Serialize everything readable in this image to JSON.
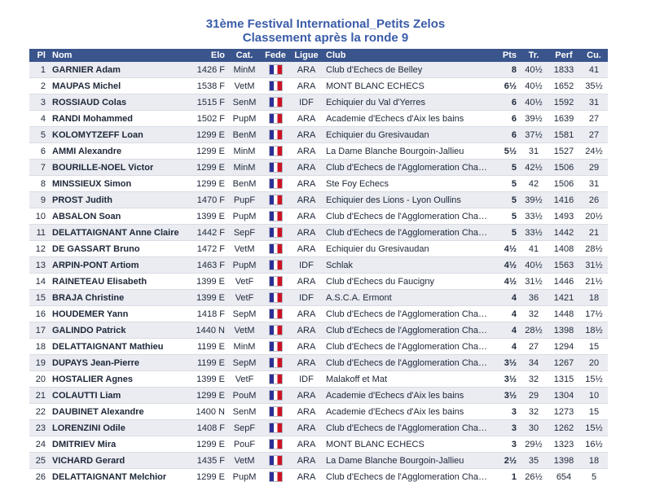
{
  "page": {
    "title": "31ème Festival International_Petits Zelos",
    "subtitle": "Classement après la ronde 9"
  },
  "colors": {
    "title-text": "#3a5ca8",
    "header-bg": "#3a548c",
    "row-alt": "#eaecf2",
    "body-text": "#20293a",
    "flag-blue": "#2b2f96",
    "flag-red": "#cc1425"
  },
  "table": {
    "columns": [
      "Pl",
      "Nom",
      "Elo",
      "Cat.",
      "Fede",
      "Ligue",
      "Club",
      "Pts",
      "Tr.",
      "Perf",
      "Cu."
    ],
    "flag_icon": "france-flag",
    "rows": [
      {
        "pl": "1",
        "nom": "GARNIER Adam",
        "elo": "1426 F",
        "cat": "MinM",
        "ligue": "ARA",
        "club": "Club d'Echecs de Belley",
        "pts": "8",
        "tr": "40½",
        "perf": "1833",
        "cu": "41"
      },
      {
        "pl": "2",
        "nom": "MAUPAS Michel",
        "elo": "1538 F",
        "cat": "VetM",
        "ligue": "ARA",
        "club": "MONT BLANC ECHECS",
        "pts": "6½",
        "tr": "40½",
        "perf": "1652",
        "cu": "35½"
      },
      {
        "pl": "3",
        "nom": "ROSSIAUD Colas",
        "elo": "1515 F",
        "cat": "SenM",
        "ligue": "IDF",
        "club": "Echiquier du Val d'Yerres",
        "pts": "6",
        "tr": "40½",
        "perf": "1592",
        "cu": "31"
      },
      {
        "pl": "4",
        "nom": "RANDI Mohammed",
        "elo": "1502 F",
        "cat": "PupM",
        "ligue": "ARA",
        "club": "Academie d'Echecs d'Aix les bains",
        "pts": "6",
        "tr": "39½",
        "perf": "1639",
        "cu": "27"
      },
      {
        "pl": "5",
        "nom": "KOLOMYTZEFF Loan",
        "elo": "1299 E",
        "cat": "BenM",
        "ligue": "ARA",
        "club": "Echiquier du Gresivaudan",
        "pts": "6",
        "tr": "37½",
        "perf": "1581",
        "cu": "27"
      },
      {
        "pl": "6",
        "nom": "AMMI Alexandre",
        "elo": "1299 E",
        "cat": "MinM",
        "ligue": "ARA",
        "club": "La Dame Blanche Bourgoin-Jallieu",
        "pts": "5½",
        "tr": "31",
        "perf": "1527",
        "cu": "24½"
      },
      {
        "pl": "7",
        "nom": "BOURILLE-NOEL Victor",
        "elo": "1299 E",
        "cat": "MinM",
        "ligue": "ARA",
        "club": "Club d'Echecs de l'Agglomeration Chambe...",
        "pts": "5",
        "tr": "42½",
        "perf": "1506",
        "cu": "29"
      },
      {
        "pl": "8",
        "nom": "MINSSIEUX Simon",
        "elo": "1299 E",
        "cat": "BenM",
        "ligue": "ARA",
        "club": "Ste Foy Echecs",
        "pts": "5",
        "tr": "42",
        "perf": "1506",
        "cu": "31"
      },
      {
        "pl": "9",
        "nom": "PROST Judith",
        "elo": "1470 F",
        "cat": "PupF",
        "ligue": "ARA",
        "club": "Echiquier des Lions - Lyon Oullins",
        "pts": "5",
        "tr": "39½",
        "perf": "1416",
        "cu": "26"
      },
      {
        "pl": "10",
        "nom": "ABSALON Soan",
        "elo": "1399 E",
        "cat": "PupM",
        "ligue": "ARA",
        "club": "Club d'Echecs de l'Agglomeration Chambe...",
        "pts": "5",
        "tr": "33½",
        "perf": "1493",
        "cu": "20½"
      },
      {
        "pl": "11",
        "nom": "DELATTAIGNANT Anne Claire",
        "elo": "1442 F",
        "cat": "SepF",
        "ligue": "ARA",
        "club": "Club d'Echecs de l'Agglomeration Chambe...",
        "pts": "5",
        "tr": "33½",
        "perf": "1442",
        "cu": "21"
      },
      {
        "pl": "12",
        "nom": "DE GASSART Bruno",
        "elo": "1472 F",
        "cat": "VetM",
        "ligue": "ARA",
        "club": "Echiquier du Gresivaudan",
        "pts": "4½",
        "tr": "41",
        "perf": "1408",
        "cu": "28½"
      },
      {
        "pl": "13",
        "nom": "ARPIN-PONT Artiom",
        "elo": "1463 F",
        "cat": "PupM",
        "ligue": "IDF",
        "club": "Schlak",
        "pts": "4½",
        "tr": "40½",
        "perf": "1563",
        "cu": "31½"
      },
      {
        "pl": "14",
        "nom": "RAINETEAU Elisabeth",
        "elo": "1399 E",
        "cat": "VetF",
        "ligue": "ARA",
        "club": "Club d'Echecs du Faucigny",
        "pts": "4½",
        "tr": "31½",
        "perf": "1446",
        "cu": "21½"
      },
      {
        "pl": "15",
        "nom": "BRAJA Christine",
        "elo": "1399 E",
        "cat": "VetF",
        "ligue": "IDF",
        "club": "A.S.C.A. Ermont",
        "pts": "4",
        "tr": "36",
        "perf": "1421",
        "cu": "18"
      },
      {
        "pl": "16",
        "nom": "HOUDEMER Yann",
        "elo": "1418 F",
        "cat": "SepM",
        "ligue": "ARA",
        "club": "Club d'Echecs de l'Agglomeration Chambe...",
        "pts": "4",
        "tr": "32",
        "perf": "1448",
        "cu": "17½"
      },
      {
        "pl": "17",
        "nom": "GALINDO Patrick",
        "elo": "1440 N",
        "cat": "VetM",
        "ligue": "ARA",
        "club": "Club d'Echecs de l'Agglomeration Chambe...",
        "pts": "4",
        "tr": "28½",
        "perf": "1398",
        "cu": "18½"
      },
      {
        "pl": "18",
        "nom": "DELATTAIGNANT Mathieu",
        "elo": "1199 E",
        "cat": "MinM",
        "ligue": "ARA",
        "club": "Club d'Echecs de l'Agglomeration Chambe...",
        "pts": "4",
        "tr": "27",
        "perf": "1294",
        "cu": "15"
      },
      {
        "pl": "19",
        "nom": "DUPAYS Jean-Pierre",
        "elo": "1199 E",
        "cat": "SepM",
        "ligue": "ARA",
        "club": "Club d'Echecs de l'Agglomeration Chambe...",
        "pts": "3½",
        "tr": "34",
        "perf": "1267",
        "cu": "20"
      },
      {
        "pl": "20",
        "nom": "HOSTALIER Agnes",
        "elo": "1399 E",
        "cat": "VetF",
        "ligue": "IDF",
        "club": "Malakoff et Mat",
        "pts": "3½",
        "tr": "32",
        "perf": "1315",
        "cu": "15½"
      },
      {
        "pl": "21",
        "nom": "COLAUTTI Liam",
        "elo": "1299 E",
        "cat": "PouM",
        "ligue": "ARA",
        "club": "Academie d'Echecs d'Aix les bains",
        "pts": "3½",
        "tr": "29",
        "perf": "1304",
        "cu": "10"
      },
      {
        "pl": "22",
        "nom": "DAUBINET Alexandre",
        "elo": "1400 N",
        "cat": "SenM",
        "ligue": "ARA",
        "club": "Academie d'Echecs d'Aix les bains",
        "pts": "3",
        "tr": "32",
        "perf": "1273",
        "cu": "15"
      },
      {
        "pl": "23",
        "nom": "LORENZINI Odile",
        "elo": "1408 F",
        "cat": "SepF",
        "ligue": "ARA",
        "club": "Club d'Echecs de l'Agglomeration Chambe...",
        "pts": "3",
        "tr": "30",
        "perf": "1262",
        "cu": "15½"
      },
      {
        "pl": "24",
        "nom": "DMITRIEV Mira",
        "elo": "1299 E",
        "cat": "PouF",
        "ligue": "ARA",
        "club": "MONT BLANC ECHECS",
        "pts": "3",
        "tr": "29½",
        "perf": "1323",
        "cu": "16½"
      },
      {
        "pl": "25",
        "nom": "VICHARD Gerard",
        "elo": "1435 F",
        "cat": "VetM",
        "ligue": "ARA",
        "club": "La Dame Blanche Bourgoin-Jallieu",
        "pts": "2½",
        "tr": "35",
        "perf": "1398",
        "cu": "18"
      },
      {
        "pl": "26",
        "nom": "DELATTAIGNANT Melchior",
        "elo": "1299 E",
        "cat": "PupM",
        "ligue": "ARA",
        "club": "Club d'Echecs de l'Agglomeration Chambe...",
        "pts": "1",
        "tr": "26½",
        "perf": "654",
        "cu": "5"
      }
    ]
  }
}
